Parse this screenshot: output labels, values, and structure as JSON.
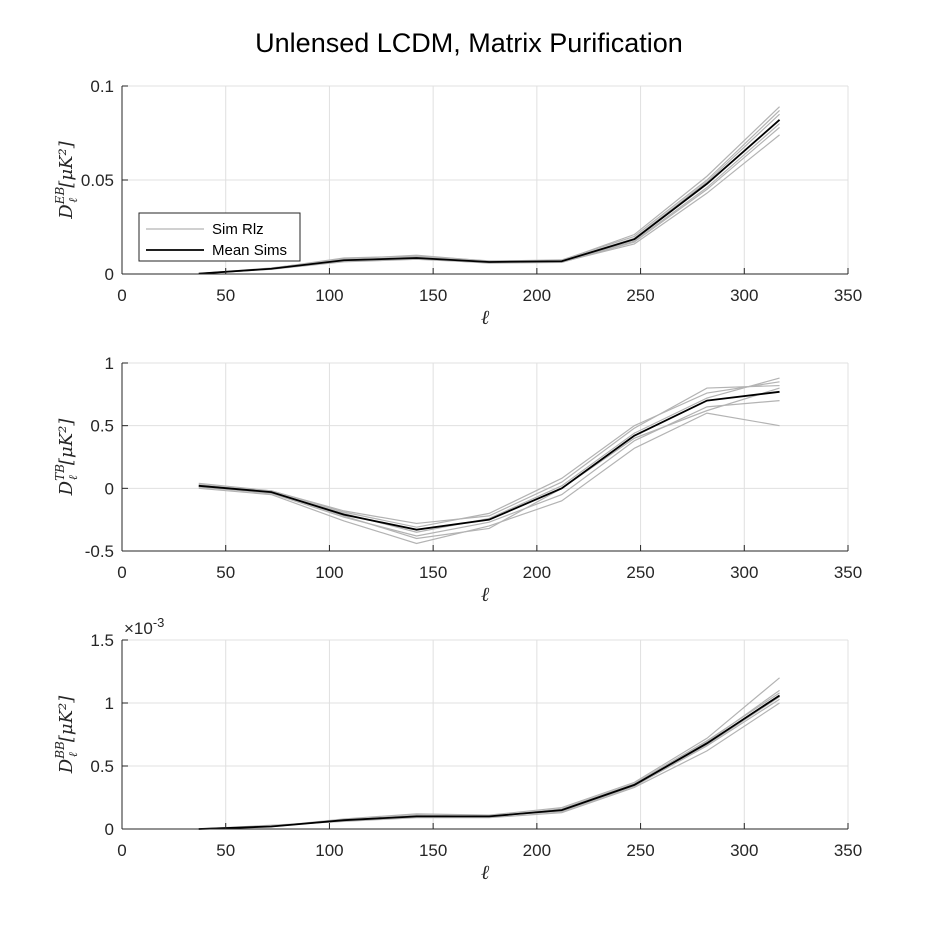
{
  "chart_data": {
    "title": "Unlensed LCDM, Matrix Purification",
    "legend": {
      "placement": "inside-left",
      "entries": [
        {
          "label": "Sim Rlz",
          "color": "#b3b3b3"
        },
        {
          "label": "Mean Sims",
          "color": "#000000"
        }
      ]
    },
    "panels": [
      {
        "type": "line",
        "xlabel": "ℓ",
        "ylabel": {
          "D": "D",
          "sup": "EB",
          "sub": "ℓ",
          "units": "[μK²]"
        },
        "xlim": [
          0,
          350
        ],
        "ylim": [
          0,
          0.1
        ],
        "xticks": [
          0,
          50,
          100,
          150,
          200,
          250,
          300,
          350
        ],
        "yticks": [
          0,
          0.05,
          0.1
        ],
        "ytick_labels": [
          "0",
          "0.05",
          "0.1"
        ],
        "grid": true,
        "exponent": "",
        "x": [
          37,
          72,
          107,
          142,
          177,
          212,
          247,
          282,
          317
        ],
        "mean": [
          0.0002,
          0.0028,
          0.0073,
          0.0085,
          0.0064,
          0.0068,
          0.0185,
          0.048,
          0.082
        ],
        "sims": [
          [
            0.0001,
            0.003,
            0.0085,
            0.0095,
            0.007,
            0.0072,
            0.021,
            0.052,
            0.089
          ],
          [
            0.0003,
            0.0025,
            0.0065,
            0.0078,
            0.006,
            0.0064,
            0.016,
            0.043,
            0.074
          ],
          [
            0.0002,
            0.0032,
            0.008,
            0.01,
            0.0068,
            0.0075,
            0.02,
            0.05,
            0.087
          ],
          [
            0.0001,
            0.0026,
            0.007,
            0.0082,
            0.0058,
            0.0062,
            0.017,
            0.045,
            0.078
          ],
          [
            0.0002,
            0.0029,
            0.0075,
            0.009,
            0.0066,
            0.007,
            0.019,
            0.049,
            0.085
          ],
          [
            0.0002,
            0.0027,
            0.0068,
            0.008,
            0.0062,
            0.0066,
            0.0175,
            0.046,
            0.08
          ]
        ]
      },
      {
        "type": "line",
        "xlabel": "ℓ",
        "ylabel": {
          "D": "D",
          "sup": "TB",
          "sub": "ℓ",
          "units": "[μK²]"
        },
        "xlim": [
          0,
          350
        ],
        "ylim": [
          -0.5,
          1
        ],
        "xticks": [
          0,
          50,
          100,
          150,
          200,
          250,
          300,
          350
        ],
        "yticks": [
          -0.5,
          0,
          0.5,
          1
        ],
        "ytick_labels": [
          "-0.5",
          "0",
          "0.5",
          "1"
        ],
        "grid": true,
        "exponent": "",
        "x": [
          37,
          72,
          107,
          142,
          177,
          212,
          247,
          282,
          317
        ],
        "mean": [
          0.02,
          -0.03,
          -0.21,
          -0.33,
          -0.25,
          0.0,
          0.42,
          0.7,
          0.77
        ],
        "sims": [
          [
            0.04,
            -0.02,
            -0.18,
            -0.28,
            -0.22,
            0.05,
            0.48,
            0.8,
            0.82
          ],
          [
            0.0,
            -0.05,
            -0.26,
            -0.44,
            -0.3,
            -0.1,
            0.32,
            0.6,
            0.5
          ],
          [
            0.03,
            -0.03,
            -0.2,
            -0.35,
            -0.24,
            0.02,
            0.44,
            0.72,
            0.88
          ],
          [
            0.01,
            -0.04,
            -0.23,
            -0.38,
            -0.27,
            -0.05,
            0.38,
            0.65,
            0.7
          ],
          [
            0.02,
            -0.02,
            -0.19,
            -0.31,
            -0.2,
            0.08,
            0.5,
            0.76,
            0.85
          ],
          [
            0.02,
            -0.03,
            -0.22,
            -0.4,
            -0.32,
            0.0,
            0.4,
            0.62,
            0.8
          ]
        ]
      },
      {
        "type": "line",
        "xlabel": "ℓ",
        "ylabel": {
          "D": "D",
          "sup": "BB",
          "sub": "ℓ",
          "units": "[μK²]"
        },
        "xlim": [
          0,
          350
        ],
        "ylim": [
          0,
          1.5
        ],
        "xticks": [
          0,
          50,
          100,
          150,
          200,
          250,
          300,
          350
        ],
        "yticks": [
          0,
          0.5,
          1,
          1.5
        ],
        "ytick_labels": [
          "0",
          "0.5",
          "1",
          "1.5"
        ],
        "grid": true,
        "exponent": "×10-3",
        "x": [
          37,
          72,
          107,
          142,
          177,
          212,
          247,
          282,
          317
        ],
        "mean": [
          0.0,
          0.02,
          0.07,
          0.1,
          0.1,
          0.15,
          0.35,
          0.68,
          1.06
        ],
        "sims": [
          [
            0.0,
            0.02,
            0.08,
            0.12,
            0.11,
            0.17,
            0.37,
            0.72,
            1.2
          ],
          [
            0.0,
            0.03,
            0.06,
            0.09,
            0.09,
            0.13,
            0.33,
            0.62,
            1.0
          ],
          [
            0.0,
            0.02,
            0.07,
            0.11,
            0.1,
            0.16,
            0.36,
            0.7,
            1.08
          ],
          [
            0.0,
            0.02,
            0.075,
            0.095,
            0.105,
            0.14,
            0.34,
            0.66,
            1.03
          ],
          [
            0.0,
            0.025,
            0.065,
            0.1,
            0.095,
            0.155,
            0.35,
            0.69,
            1.1
          ],
          [
            0.0,
            0.02,
            0.07,
            0.105,
            0.1,
            0.15,
            0.345,
            0.67,
            1.05
          ]
        ]
      }
    ]
  }
}
